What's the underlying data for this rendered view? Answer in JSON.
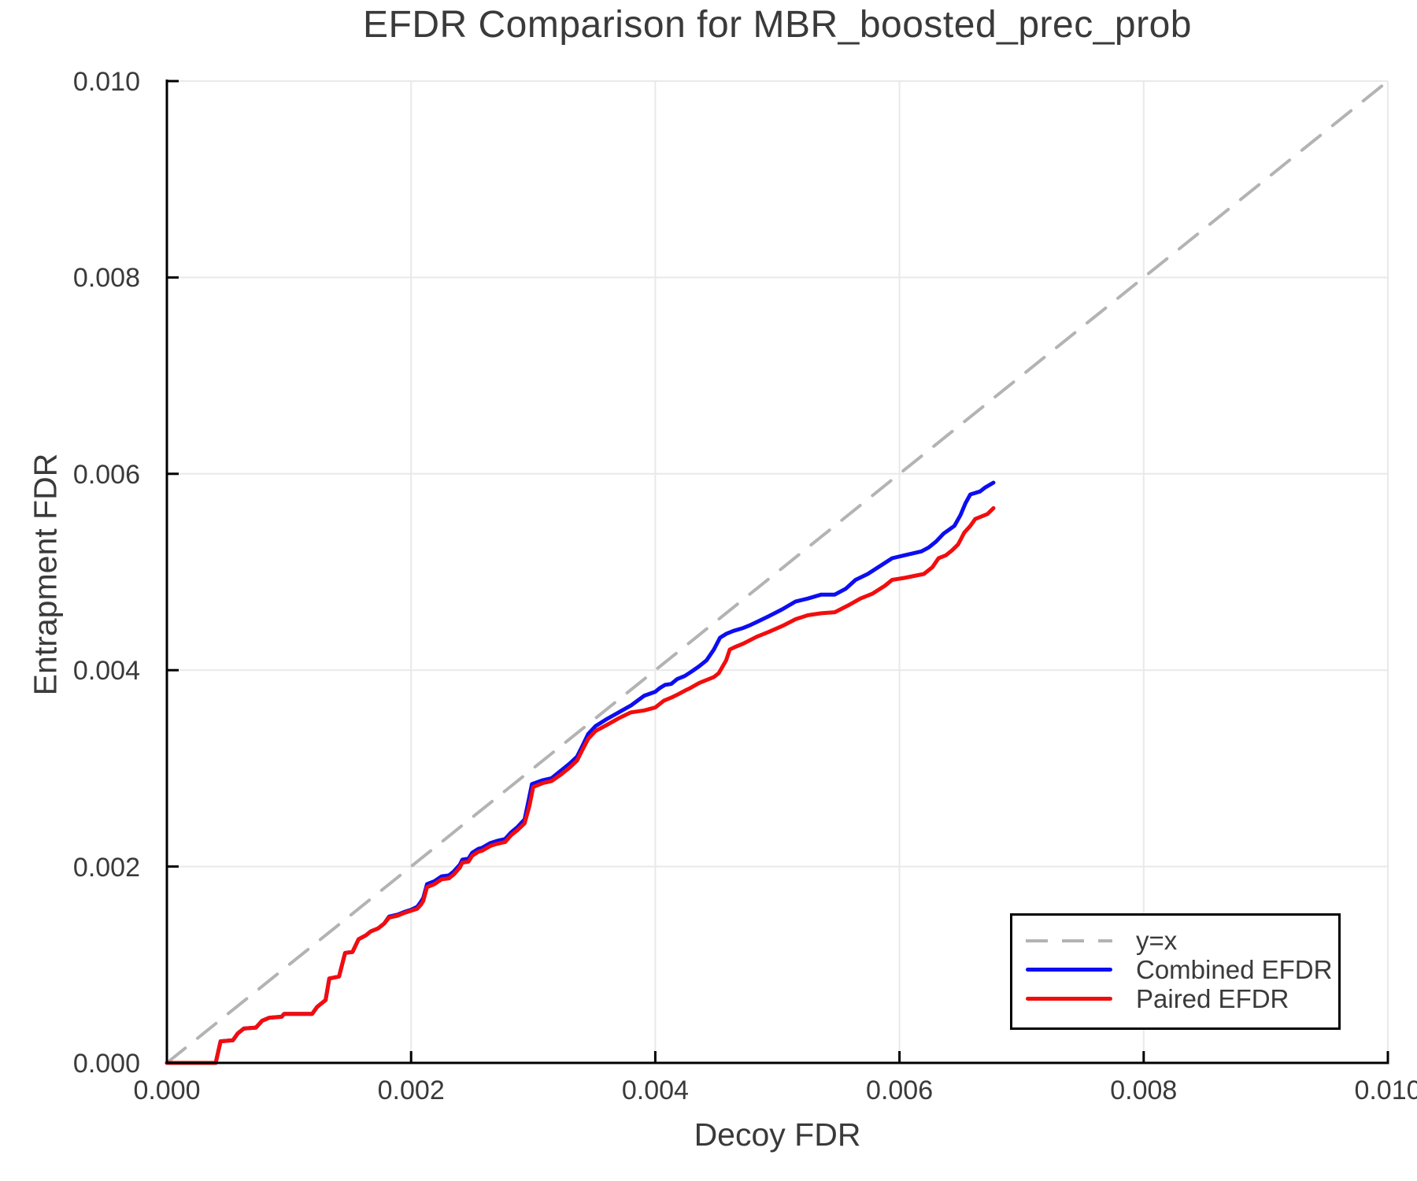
{
  "title": "EFDR Comparison for MBR_boosted_prec_prob",
  "colors": {
    "combined": "#0d0df2",
    "paired": "#f20d0d",
    "diagonal": "#b3b3b3",
    "grid": "#e9e9e9",
    "axis": "#000000",
    "text": "#3a3a3a",
    "background": "#ffffff"
  },
  "legend": {
    "entries": [
      {
        "label": "y=x",
        "style": "dashed",
        "color": "#b3b3b3"
      },
      {
        "label": "Combined EFDR",
        "style": "solid",
        "color": "#0d0df2"
      },
      {
        "label": "Paired EFDR",
        "style": "solid",
        "color": "#f20d0d"
      }
    ]
  },
  "chart_data": {
    "type": "line",
    "title": "EFDR Comparison for MBR_boosted_prec_prob",
    "xlabel": "Decoy FDR",
    "ylabel": "Entrapment FDR",
    "xlim": [
      0.0,
      0.01
    ],
    "ylim": [
      0.0,
      0.01
    ],
    "grid": true,
    "legend_position": "bottom-right",
    "x_ticks": [
      0.0,
      0.002,
      0.004,
      0.006,
      0.008,
      0.01
    ],
    "x_tick_labels": [
      "0.000",
      "0.002",
      "0.004",
      "0.006",
      "0.008",
      "0.010"
    ],
    "y_ticks": [
      0.0,
      0.002,
      0.004,
      0.006,
      0.008,
      0.01
    ],
    "y_tick_labels": [
      "0.000",
      "0.002",
      "0.004",
      "0.006",
      "0.008",
      "0.010"
    ],
    "series": [
      {
        "name": "y=x",
        "style": "dashed",
        "color": "#b3b3b3",
        "width": 4,
        "points": [
          [
            0.0,
            0.0
          ],
          [
            0.01,
            0.01
          ]
        ]
      },
      {
        "name": "Combined EFDR",
        "style": "solid",
        "color": "#0d0df2",
        "width": 5,
        "points": [
          [
            0.0,
            0.0
          ],
          [
            0.0004,
            0.0
          ],
          [
            0.00044,
            0.00022
          ],
          [
            0.00054,
            0.00023
          ],
          [
            0.00058,
            0.0003
          ],
          [
            0.00063,
            0.00035
          ],
          [
            0.00073,
            0.00036
          ],
          [
            0.00078,
            0.00043
          ],
          [
            0.00084,
            0.00046
          ],
          [
            0.00094,
            0.00047
          ],
          [
            0.00096,
            0.0005
          ],
          [
            0.00119,
            0.0005
          ],
          [
            0.00123,
            0.00057
          ],
          [
            0.00126,
            0.0006
          ],
          [
            0.0013,
            0.00064
          ],
          [
            0.00133,
            0.00086
          ],
          [
            0.00141,
            0.00088
          ],
          [
            0.00146,
            0.00112
          ],
          [
            0.00152,
            0.00113
          ],
          [
            0.00157,
            0.00126
          ],
          [
            0.00163,
            0.0013
          ],
          [
            0.00167,
            0.00134
          ],
          [
            0.00173,
            0.00137
          ],
          [
            0.00178,
            0.00142
          ],
          [
            0.00182,
            0.00149
          ],
          [
            0.00189,
            0.00151
          ],
          [
            0.00195,
            0.00154
          ],
          [
            0.002,
            0.00156
          ],
          [
            0.00205,
            0.00159
          ],
          [
            0.00208,
            0.00164
          ],
          [
            0.0021,
            0.00168
          ],
          [
            0.00213,
            0.00182
          ],
          [
            0.00219,
            0.00185
          ],
          [
            0.00225,
            0.0019
          ],
          [
            0.00231,
            0.00191
          ],
          [
            0.00235,
            0.00195
          ],
          [
            0.0024,
            0.00202
          ],
          [
            0.00242,
            0.00207
          ],
          [
            0.00247,
            0.00208
          ],
          [
            0.0025,
            0.00214
          ],
          [
            0.00255,
            0.00218
          ],
          [
            0.00258,
            0.00219
          ],
          [
            0.00265,
            0.00224
          ],
          [
            0.0027,
            0.00226
          ],
          [
            0.00277,
            0.00228
          ],
          [
            0.00282,
            0.00235
          ],
          [
            0.00287,
            0.0024
          ],
          [
            0.00293,
            0.00248
          ],
          [
            0.00296,
            0.00266
          ],
          [
            0.00299,
            0.00284
          ],
          [
            0.00308,
            0.00288
          ],
          [
            0.00315,
            0.0029
          ],
          [
            0.00323,
            0.00298
          ],
          [
            0.0033,
            0.00305
          ],
          [
            0.00336,
            0.00312
          ],
          [
            0.0034,
            0.00322
          ],
          [
            0.00345,
            0.00335
          ],
          [
            0.00351,
            0.00343
          ],
          [
            0.0036,
            0.0035
          ],
          [
            0.0037,
            0.00357
          ],
          [
            0.0038,
            0.00364
          ],
          [
            0.00391,
            0.00374
          ],
          [
            0.004,
            0.00378
          ],
          [
            0.00404,
            0.00382
          ],
          [
            0.00408,
            0.00385
          ],
          [
            0.00413,
            0.00386
          ],
          [
            0.00418,
            0.00391
          ],
          [
            0.00424,
            0.00394
          ],
          [
            0.00429,
            0.00398
          ],
          [
            0.00436,
            0.00404
          ],
          [
            0.00442,
            0.0041
          ],
          [
            0.00448,
            0.00421
          ],
          [
            0.00453,
            0.00433
          ],
          [
            0.00458,
            0.00437
          ],
          [
            0.00464,
            0.0044
          ],
          [
            0.00472,
            0.00443
          ],
          [
            0.00478,
            0.00446
          ],
          [
            0.00483,
            0.00449
          ],
          [
            0.00493,
            0.00455
          ],
          [
            0.00504,
            0.00462
          ],
          [
            0.00515,
            0.0047
          ],
          [
            0.00525,
            0.00473
          ],
          [
            0.00536,
            0.00477
          ],
          [
            0.00547,
            0.00477
          ],
          [
            0.00556,
            0.00483
          ],
          [
            0.00564,
            0.00492
          ],
          [
            0.00574,
            0.00498
          ],
          [
            0.00584,
            0.00506
          ],
          [
            0.00594,
            0.00514
          ],
          [
            0.00604,
            0.00517
          ],
          [
            0.00611,
            0.00519
          ],
          [
            0.00618,
            0.00521
          ],
          [
            0.00624,
            0.00525
          ],
          [
            0.0063,
            0.00531
          ],
          [
            0.00636,
            0.00539
          ],
          [
            0.00645,
            0.00547
          ],
          [
            0.0065,
            0.00558
          ],
          [
            0.00654,
            0.0057
          ],
          [
            0.00658,
            0.00579
          ],
          [
            0.00666,
            0.00582
          ],
          [
            0.0067,
            0.00586
          ],
          [
            0.00677,
            0.00591
          ]
        ]
      },
      {
        "name": "Paired EFDR",
        "style": "solid",
        "color": "#f20d0d",
        "width": 5,
        "points": [
          [
            0.0,
            0.0
          ],
          [
            0.0004,
            0.0
          ],
          [
            0.00044,
            0.00022
          ],
          [
            0.00054,
            0.00023
          ],
          [
            0.00058,
            0.0003
          ],
          [
            0.00063,
            0.00035
          ],
          [
            0.00073,
            0.00036
          ],
          [
            0.00078,
            0.00043
          ],
          [
            0.00084,
            0.00046
          ],
          [
            0.00094,
            0.00047
          ],
          [
            0.00096,
            0.0005
          ],
          [
            0.00119,
            0.0005
          ],
          [
            0.00123,
            0.00057
          ],
          [
            0.00126,
            0.0006
          ],
          [
            0.0013,
            0.00064
          ],
          [
            0.00133,
            0.00086
          ],
          [
            0.00141,
            0.00088
          ],
          [
            0.00146,
            0.00112
          ],
          [
            0.00152,
            0.00113
          ],
          [
            0.00157,
            0.00126
          ],
          [
            0.00163,
            0.0013
          ],
          [
            0.00167,
            0.00134
          ],
          [
            0.00173,
            0.00137
          ],
          [
            0.00178,
            0.00142
          ],
          [
            0.00182,
            0.00148
          ],
          [
            0.00189,
            0.0015
          ],
          [
            0.00195,
            0.00153
          ],
          [
            0.002,
            0.00155
          ],
          [
            0.00205,
            0.00157
          ],
          [
            0.00208,
            0.00161
          ],
          [
            0.0021,
            0.00165
          ],
          [
            0.00213,
            0.00179
          ],
          [
            0.00219,
            0.00182
          ],
          [
            0.00225,
            0.00187
          ],
          [
            0.00231,
            0.00188
          ],
          [
            0.00235,
            0.00192
          ],
          [
            0.0024,
            0.00199
          ],
          [
            0.00242,
            0.00204
          ],
          [
            0.00247,
            0.00205
          ],
          [
            0.0025,
            0.00211
          ],
          [
            0.00255,
            0.00215
          ],
          [
            0.00258,
            0.00216
          ],
          [
            0.00265,
            0.00221
          ],
          [
            0.0027,
            0.00223
          ],
          [
            0.00277,
            0.00225
          ],
          [
            0.00282,
            0.00232
          ],
          [
            0.00287,
            0.00237
          ],
          [
            0.00293,
            0.00244
          ],
          [
            0.00297,
            0.00262
          ],
          [
            0.003,
            0.00281
          ],
          [
            0.00308,
            0.00285
          ],
          [
            0.00315,
            0.00287
          ],
          [
            0.00323,
            0.00294
          ],
          [
            0.0033,
            0.00301
          ],
          [
            0.00336,
            0.00308
          ],
          [
            0.0034,
            0.00318
          ],
          [
            0.00345,
            0.0033
          ],
          [
            0.00351,
            0.00338
          ],
          [
            0.0036,
            0.00344
          ],
          [
            0.0037,
            0.00351
          ],
          [
            0.0038,
            0.00357
          ],
          [
            0.00391,
            0.00359
          ],
          [
            0.004,
            0.00362
          ],
          [
            0.00407,
            0.00369
          ],
          [
            0.00413,
            0.00372
          ],
          [
            0.00418,
            0.00375
          ],
          [
            0.00424,
            0.00379
          ],
          [
            0.00429,
            0.00382
          ],
          [
            0.00436,
            0.00387
          ],
          [
            0.00442,
            0.0039
          ],
          [
            0.00448,
            0.00393
          ],
          [
            0.00452,
            0.00397
          ],
          [
            0.00458,
            0.0041
          ],
          [
            0.00461,
            0.00421
          ],
          [
            0.00466,
            0.00424
          ],
          [
            0.00472,
            0.00427
          ],
          [
            0.00483,
            0.00434
          ],
          [
            0.00493,
            0.00439
          ],
          [
            0.00504,
            0.00445
          ],
          [
            0.00515,
            0.00452
          ],
          [
            0.00525,
            0.00456
          ],
          [
            0.00536,
            0.00458
          ],
          [
            0.00547,
            0.00459
          ],
          [
            0.00558,
            0.00466
          ],
          [
            0.00568,
            0.00473
          ],
          [
            0.00578,
            0.00478
          ],
          [
            0.00588,
            0.00486
          ],
          [
            0.00594,
            0.00492
          ],
          [
            0.00604,
            0.00494
          ],
          [
            0.00612,
            0.00496
          ],
          [
            0.0062,
            0.00498
          ],
          [
            0.00627,
            0.00505
          ],
          [
            0.00632,
            0.00514
          ],
          [
            0.00638,
            0.00517
          ],
          [
            0.00643,
            0.00522
          ],
          [
            0.00648,
            0.00528
          ],
          [
            0.00653,
            0.0054
          ],
          [
            0.00658,
            0.00547
          ],
          [
            0.00662,
            0.00554
          ],
          [
            0.00668,
            0.00557
          ],
          [
            0.00672,
            0.00559
          ],
          [
            0.00677,
            0.00565
          ]
        ]
      }
    ]
  }
}
